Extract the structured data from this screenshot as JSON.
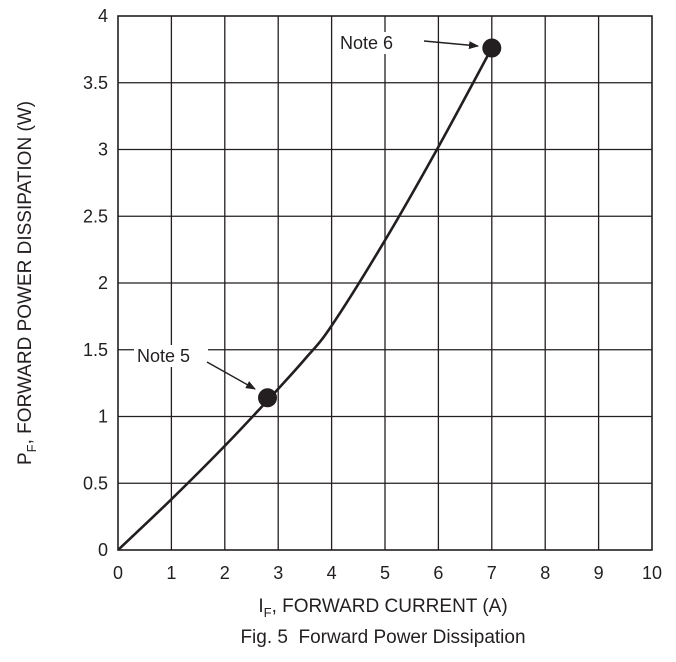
{
  "chart_data": {
    "type": "line",
    "caption": "Fig. 5  Forward Power Dissipation",
    "xlabel": {
      "main": "I",
      "sub": "F",
      "rest": ", FORWARD CURRENT (A)"
    },
    "ylabel": {
      "main": "P",
      "sub": "F",
      "rest": ", FORWARD POWER DISSIPATION (W)"
    },
    "xlim": [
      0,
      10
    ],
    "ylim": [
      0,
      4
    ],
    "x_ticks": [
      0,
      1,
      2,
      3,
      4,
      5,
      6,
      7,
      8,
      9,
      10
    ],
    "y_ticks": [
      0,
      0.5,
      1,
      1.5,
      2,
      2.5,
      3,
      3.5,
      4
    ],
    "x_tick_labels": [
      "0",
      "1",
      "2",
      "3",
      "4",
      "5",
      "6",
      "7",
      "8",
      "9",
      "10"
    ],
    "y_tick_labels": [
      "0",
      "0.5",
      "1",
      "1.5",
      "2",
      "2.5",
      "3",
      "3.5",
      "4"
    ],
    "grid": true,
    "series": [
      {
        "x": [
          0,
          1,
          2,
          2.8,
          3.5,
          4,
          5,
          6,
          7
        ],
        "y": [
          0,
          0.38,
          0.78,
          1.12,
          1.43,
          1.68,
          2.32,
          3.02,
          3.76
        ]
      }
    ],
    "annotations": [
      {
        "text": "Note 5",
        "x": 2.8,
        "y": 1.14
      },
      {
        "text": "Note 6",
        "x": 7.0,
        "y": 3.76
      }
    ]
  }
}
